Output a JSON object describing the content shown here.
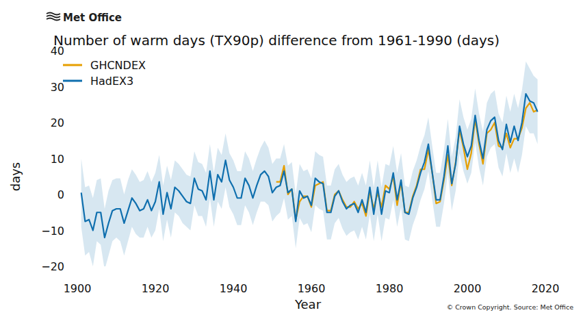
{
  "chart_data": {
    "type": "line",
    "logo": "Met Office",
    "title": "Number of warm days (TX90p) difference from 1961-1990 (days)",
    "x_label": "Year",
    "y_label": "days",
    "source": "© Crown Copyright. Source: Met Office",
    "legend": "upper left",
    "grid": false,
    "xlim": [
      1900,
      2020
    ],
    "ylim": [
      -20,
      40
    ],
    "xticks": [
      1900,
      1920,
      1940,
      1960,
      1980,
      2000,
      2020
    ],
    "yticks": [
      {
        "value": -20,
        "label": "−20"
      },
      {
        "value": -10,
        "label": "−10"
      },
      0,
      10,
      20,
      30,
      40
    ],
    "x": [
      1901,
      1902,
      1903,
      1904,
      1905,
      1906,
      1907,
      1908,
      1909,
      1910,
      1911,
      1912,
      1913,
      1914,
      1915,
      1916,
      1917,
      1918,
      1919,
      1920,
      1921,
      1922,
      1923,
      1924,
      1925,
      1926,
      1927,
      1928,
      1929,
      1930,
      1931,
      1932,
      1933,
      1934,
      1935,
      1936,
      1937,
      1938,
      1939,
      1940,
      1941,
      1942,
      1943,
      1944,
      1945,
      1946,
      1947,
      1948,
      1949,
      1950,
      1951,
      1952,
      1953,
      1954,
      1955,
      1956,
      1957,
      1958,
      1959,
      1960,
      1961,
      1962,
      1963,
      1964,
      1965,
      1966,
      1967,
      1968,
      1969,
      1970,
      1971,
      1972,
      1973,
      1974,
      1975,
      1976,
      1977,
      1978,
      1979,
      1980,
      1981,
      1982,
      1983,
      1984,
      1985,
      1986,
      1987,
      1988,
      1989,
      1990,
      1991,
      1992,
      1993,
      1994,
      1995,
      1996,
      1997,
      1998,
      1999,
      2000,
      2001,
      2002,
      2003,
      2004,
      2005,
      2006,
      2007,
      2008,
      2009,
      2010,
      2011,
      2012,
      2013,
      2014,
      2015,
      2016,
      2017,
      2018
    ],
    "series": [
      {
        "name": "GHCNDEX",
        "color": "#e69f00",
        "values": [
          null,
          null,
          null,
          null,
          null,
          null,
          null,
          null,
          null,
          null,
          null,
          null,
          null,
          null,
          null,
          null,
          null,
          null,
          null,
          null,
          null,
          null,
          null,
          null,
          null,
          null,
          null,
          null,
          null,
          null,
          null,
          null,
          null,
          null,
          null,
          null,
          null,
          null,
          null,
          null,
          null,
          null,
          null,
          null,
          null,
          null,
          null,
          null,
          null,
          null,
          3.5,
          3.5,
          8,
          0,
          1.5,
          -7,
          -2,
          -0.5,
          -0.5,
          -3.5,
          2.5,
          3,
          3.5,
          -4.5,
          -4.5,
          0,
          1,
          -1.5,
          -3.5,
          -3.5,
          -2,
          -4,
          -2.5,
          -6,
          1,
          -4,
          0.5,
          -3.5,
          2.5,
          1.5,
          5,
          -3,
          3.5,
          -5,
          -5,
          -0.5,
          2.5,
          7,
          7,
          12.5,
          6,
          -2.5,
          -2,
          4,
          11,
          2.5,
          9,
          18,
          13,
          7,
          11.5,
          21,
          14,
          8.5,
          17,
          18,
          20,
          13.5,
          13,
          17,
          13,
          15.5,
          15.5,
          18.5,
          24,
          25.5,
          23,
          23.5
        ]
      },
      {
        "name": "HadEX3",
        "color": "#0f6fae",
        "values": [
          0.5,
          -7.5,
          -7,
          -10,
          -5,
          -5,
          -12,
          -8,
          -4.5,
          -4,
          -4,
          -8,
          -4.5,
          -1,
          -2.5,
          -4.5,
          -4,
          -1.5,
          -4.5,
          -2,
          3.5,
          -5.5,
          0.5,
          -4,
          2,
          1,
          -0.5,
          -2,
          -2.5,
          4.5,
          1.5,
          1,
          -1.5,
          6.5,
          -1.5,
          5.5,
          3.5,
          9.5,
          4,
          2,
          -1,
          -1,
          4.5,
          2.5,
          -1,
          2.5,
          5.5,
          6.5,
          5,
          0.5,
          2,
          2.5,
          6.5,
          0.5,
          1.5,
          -7.5,
          1,
          -1,
          -0.5,
          -3,
          4.5,
          3.5,
          3,
          -5,
          -5,
          -0.5,
          1,
          -2,
          -4,
          -3,
          -2.5,
          -5,
          -1.5,
          -5,
          2,
          -5.5,
          2,
          -5.5,
          1,
          0.5,
          6,
          -1.5,
          4,
          -5,
          -5.5,
          -1,
          2,
          6,
          9,
          14,
          6,
          -1.5,
          -1.5,
          5,
          13.5,
          3,
          8.5,
          19,
          14,
          10.5,
          13.5,
          22,
          15,
          10,
          18,
          20.5,
          21.5,
          15,
          12.5,
          19.5,
          14.5,
          19,
          15,
          20,
          28,
          26,
          25.5,
          23
        ],
        "lower": [
          -9,
          -17,
          -16,
          -20,
          -13,
          -14,
          -21,
          -17,
          -13,
          -12,
          -13,
          -17,
          -13,
          -9,
          -11,
          -12,
          -12,
          -9,
          -12,
          -10,
          -4,
          -13,
          -7,
          -12,
          -5,
          -6,
          -8,
          -9,
          -10,
          -3,
          -6,
          -6,
          -9,
          -1,
          -9,
          -2,
          -4,
          2,
          -3.5,
          -5.5,
          -8.5,
          -8.5,
          -3,
          -5,
          -8.5,
          -5,
          -2,
          -2,
          -3,
          -7.5,
          -6,
          -5,
          -1,
          -7,
          -6,
          -15,
          -6.5,
          -8.5,
          -8,
          -10.5,
          -3,
          -4,
          -4.5,
          -12.5,
          -12.5,
          -8,
          -6.5,
          -9.5,
          -11.5,
          -10.5,
          -10,
          -12.5,
          -9,
          -12.5,
          -5.5,
          -13,
          -5.5,
          -13,
          -6.5,
          -7,
          -1.5,
          -9,
          -3.5,
          -12.5,
          -13,
          -8.5,
          -5.5,
          -1.5,
          1.5,
          6.5,
          -1.5,
          -9,
          -9,
          -2.5,
          6,
          -4.5,
          1,
          11.5,
          6.5,
          3,
          6,
          14.5,
          7.5,
          2.5,
          10.5,
          13,
          14,
          7.5,
          5,
          11.5,
          6,
          10,
          6,
          11,
          19,
          17,
          17,
          14
        ],
        "upper": [
          10,
          2,
          2.5,
          -1,
          4,
          4.5,
          -4,
          1,
          4,
          4.5,
          4.5,
          0,
          4,
          7,
          5.5,
          3.5,
          4,
          6.5,
          3.5,
          6,
          11,
          2.5,
          8,
          4,
          9.5,
          8.5,
          7,
          5.5,
          5,
          12,
          9,
          8.5,
          6,
          14,
          6,
          13,
          11,
          17,
          11.5,
          9.5,
          6.5,
          6.5,
          12,
          10,
          6.5,
          10,
          13,
          15,
          13,
          8.5,
          10,
          10,
          14,
          8,
          9,
          0,
          8.5,
          6.5,
          7,
          4.5,
          12,
          11,
          10.5,
          2.5,
          2.5,
          7,
          8.5,
          5.5,
          3.5,
          4.5,
          5,
          2.5,
          6,
          2.5,
          9.5,
          2,
          9.5,
          2,
          8.5,
          8,
          13.5,
          6,
          11.5,
          2.5,
          2,
          6.5,
          9.5,
          13.5,
          16.5,
          21.5,
          13.5,
          6,
          6,
          12.5,
          21,
          10.5,
          16,
          26.5,
          21.5,
          18,
          21,
          29.5,
          22.5,
          17.5,
          25.5,
          28,
          29,
          22.5,
          20,
          27.5,
          23,
          28,
          24,
          29,
          37,
          35,
          33,
          32
        ]
      }
    ]
  }
}
